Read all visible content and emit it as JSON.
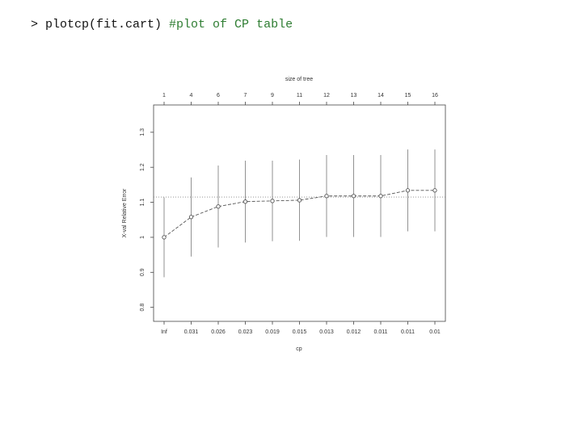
{
  "code": {
    "command": "> plotcp(fit.cart)",
    "comment": "#plot of CP table"
  },
  "chart_data": {
    "type": "line",
    "x_label": "cp",
    "y_label": "X-val Relative Error",
    "top_label": "size of tree",
    "categories": [
      "Inf",
      "0.031",
      "0.026",
      "0.023",
      "0.019",
      "0.015",
      "0.013",
      "0.012",
      "0.011",
      "0.011",
      "0.01"
    ],
    "top_categories": [
      1,
      4,
      6,
      7,
      9,
      11,
      12,
      13,
      14,
      15,
      16
    ],
    "values": [
      1.0,
      1.058,
      1.088,
      1.102,
      1.104,
      1.106,
      1.118,
      1.118,
      1.118,
      1.134,
      1.134
    ],
    "errors": [
      0.114,
      0.113,
      0.117,
      0.117,
      0.115,
      0.116,
      0.117,
      0.117,
      0.117,
      0.117,
      0.117
    ],
    "threshold": 1.115,
    "color": "#555555",
    "ylim": [
      0.76,
      1.378
    ],
    "yticks": [
      0.8,
      0.9,
      1.0,
      1.1,
      1.2,
      1.3
    ]
  }
}
